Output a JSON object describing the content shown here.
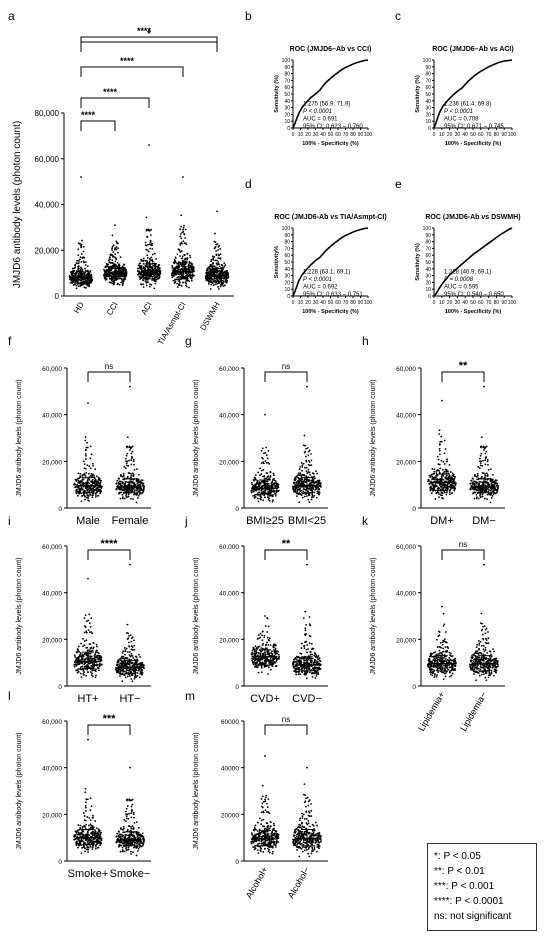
{
  "chart_data": [
    {
      "panel": "a",
      "type": "scatter",
      "ylabel": "JMJD6 antibody levels (photon count)",
      "ylim": [
        0,
        80000
      ],
      "yticks": [
        "0",
        "20,000",
        "40,000",
        "60,000",
        "80,000"
      ],
      "categories": [
        "HD",
        "CCI",
        "ACI",
        "TIA/Asmpt-CI",
        "DSWMH"
      ],
      "medians": [
        8000,
        10000,
        10500,
        10500,
        9000
      ],
      "iqr": [
        [
          5500,
          10500
        ],
        [
          7500,
          13000
        ],
        [
          7500,
          14000
        ],
        [
          7500,
          14500
        ],
        [
          6500,
          12000
        ]
      ],
      "max_outliers": [
        52000,
        31000,
        66000,
        52000,
        37000
      ],
      "significance": [
        {
          "compare": [
            "HD",
            "CCI"
          ],
          "label": "****"
        },
        {
          "compare": [
            "HD",
            "ACI"
          ],
          "label": "****"
        },
        {
          "compare": [
            "HD",
            "TIA/Asmpt-CI"
          ],
          "label": "****"
        },
        {
          "compare": [
            "HD",
            "DSWMH"
          ],
          "label": "****"
        },
        {
          "compare": [
            "HD",
            "DSWMH"
          ],
          "label": "*"
        }
      ]
    },
    {
      "panel": "b",
      "type": "line",
      "title": "ROC (JMJD6–Ab vs CCI)",
      "xlabel": "100% - Specificity (%)",
      "ylabel": "Sensitivity (%)",
      "ticks": [
        "0",
        "10",
        "20",
        "30",
        "40",
        "50",
        "60",
        "70",
        "80",
        "90",
        "100"
      ],
      "annotation": [
        "1.275 (56.9; 71.9)",
        "P < 0.0001",
        "AUC = 0.691",
        "95% CI: 0.623 – 0.760"
      ],
      "x": [
        0,
        2,
        5,
        8,
        12,
        18,
        24,
        30,
        36,
        40,
        44,
        48,
        52,
        58,
        64,
        70,
        76,
        82,
        88,
        94,
        100
      ],
      "y": [
        0,
        5,
        14,
        22,
        30,
        38,
        45,
        50,
        56,
        62,
        67,
        71,
        75,
        80,
        85,
        89,
        92,
        95,
        97,
        99,
        100
      ]
    },
    {
      "panel": "c",
      "type": "line",
      "title": "ROC (JMJD6–Ab vs ACI)",
      "xlabel": "100% - Specificity (%)",
      "ylabel": "Sensitivity (%)",
      "ticks": [
        "0",
        "10",
        "20",
        "30",
        "40",
        "50",
        "60",
        "70",
        "80",
        "90",
        "100"
      ],
      "annotation": [
        "1.236 (61.4; 69.8)",
        "P < 0.0001",
        "AUC = 0.708",
        "95% CI: 0.671 – 0.745"
      ],
      "x": [
        0,
        2,
        5,
        8,
        12,
        18,
        24,
        30,
        36,
        40,
        44,
        48,
        52,
        58,
        64,
        70,
        76,
        82,
        88,
        94,
        100
      ],
      "y": [
        0,
        6,
        16,
        25,
        33,
        41,
        48,
        54,
        59,
        64,
        69,
        73,
        77,
        82,
        86,
        90,
        93,
        96,
        98,
        99,
        100
      ]
    },
    {
      "panel": "d",
      "type": "line",
      "title": "ROC (JMJD6-Ab vs TIA/Asmpt-CI)",
      "xlabel": "100% - Specificity (%)",
      "ylabel": "Sensitivity%",
      "ticks": [
        "0",
        "10",
        "20",
        "30",
        "40",
        "50",
        "60",
        "70",
        "80",
        "90",
        "100"
      ],
      "annotation": [
        "1.228 (63.1; 69.1)",
        "P < 0.0001",
        "AUC = 0.692",
        "95% CI: 0.633 – 0.751"
      ],
      "x": [
        0,
        2,
        5,
        8,
        12,
        18,
        24,
        30,
        36,
        40,
        44,
        48,
        52,
        58,
        64,
        70,
        76,
        82,
        88,
        94,
        100
      ],
      "y": [
        0,
        5,
        14,
        23,
        31,
        39,
        46,
        52,
        57,
        62,
        67,
        71,
        75,
        80,
        85,
        89,
        92,
        95,
        97,
        99,
        100
      ]
    },
    {
      "panel": "e",
      "type": "line",
      "title": "ROC (JMJD6-Ab vs  DSWMH)",
      "xlabel": "100% - Specificity (%)",
      "ylabel": "Sensitivity (%)",
      "ticks": [
        "0",
        "10",
        "20",
        "30",
        "40",
        "50",
        "60",
        "70",
        "80",
        "90",
        "100"
      ],
      "annotation": [
        "1.228 (46.9; 69.1)",
        "P = 0.0008",
        "AUC = 0.595",
        "95% CI: 0.540 – 0.650"
      ],
      "x": [
        0,
        3,
        6,
        10,
        15,
        20,
        26,
        32,
        38,
        44,
        50,
        56,
        62,
        68,
        74,
        80,
        86,
        92,
        96,
        100
      ],
      "y": [
        0,
        4,
        10,
        17,
        24,
        31,
        37,
        43,
        49,
        55,
        61,
        66,
        71,
        76,
        81,
        86,
        91,
        95,
        98,
        100
      ]
    },
    {
      "panel": "f",
      "type": "scatter",
      "ylabel": "JMJD6 antibody levels (photon count)",
      "ylim": [
        0,
        60000
      ],
      "yticks": [
        "0",
        "20,000",
        "40,000",
        "60,000"
      ],
      "categories": [
        "Male",
        "Female"
      ],
      "medians": [
        9500,
        9000
      ],
      "iqr": [
        [
          6500,
          13000
        ],
        [
          6500,
          12500
        ]
      ],
      "max_outliers": [
        45000,
        52000
      ],
      "significance": [
        {
          "compare": [
            "Male",
            "Female"
          ],
          "label": "ns"
        }
      ]
    },
    {
      "panel": "g",
      "type": "scatter",
      "ylabel": "JMJD6 antibody levels (photon count)",
      "ylim": [
        0,
        60000
      ],
      "yticks": [
        "0",
        "20,000",
        "40,000",
        "60,000"
      ],
      "categories": [
        "BMI≥25",
        "BMI<25"
      ],
      "medians": [
        8500,
        9500
      ],
      "iqr": [
        [
          6000,
          12000
        ],
        [
          6500,
          13000
        ]
      ],
      "max_outliers": [
        40000,
        52000
      ],
      "significance": [
        {
          "compare": [
            "BMI≥25",
            "BMI<25"
          ],
          "label": "ns"
        }
      ]
    },
    {
      "panel": "h",
      "type": "scatter",
      "ylabel": "JMJD6 antibody levels (photon count)",
      "ylim": [
        0,
        60000
      ],
      "yticks": [
        "0",
        "20,000",
        "40,000",
        "60,000"
      ],
      "categories": [
        "DM+",
        "DM−"
      ],
      "medians": [
        11000,
        9000
      ],
      "iqr": [
        [
          7500,
          14500
        ],
        [
          6500,
          12500
        ]
      ],
      "max_outliers": [
        46000,
        52000
      ],
      "significance": [
        {
          "compare": [
            "DM+",
            "DM−"
          ],
          "label": "**"
        }
      ]
    },
    {
      "panel": "i",
      "type": "scatter",
      "ylabel": "JMJD6 antibody levels (photon count)",
      "ylim": [
        0,
        60000
      ],
      "yticks": [
        "0",
        "20,000",
        "40,000",
        "60,000"
      ],
      "categories": [
        "HT+",
        "HT−"
      ],
      "medians": [
        10500,
        8000
      ],
      "iqr": [
        [
          7500,
          14500
        ],
        [
          5500,
          11000
        ]
      ],
      "max_outliers": [
        46000,
        52000
      ],
      "significance": [
        {
          "compare": [
            "HT+",
            "HT−"
          ],
          "label": "****"
        }
      ]
    },
    {
      "panel": "j",
      "type": "scatter",
      "ylabel": "JMJD6 antibody levels (photon count)",
      "ylim": [
        0,
        60000
      ],
      "yticks": [
        "0",
        "20,000",
        "40,000",
        "60,000"
      ],
      "categories": [
        "CVD+",
        "CVD−"
      ],
      "medians": [
        12500,
        9000
      ],
      "iqr": [
        [
          9000,
          15500
        ],
        [
          6500,
          12500
        ]
      ],
      "max_outliers": [
        30000,
        52000
      ],
      "significance": [
        {
          "compare": [
            "CVD+",
            "CVD−"
          ],
          "label": "**"
        }
      ]
    },
    {
      "panel": "k",
      "type": "scatter",
      "ylabel": "JMJD6 antibody levels (photon count)",
      "ylim": [
        0,
        60000
      ],
      "yticks": [
        "0",
        "20,000",
        "40,000",
        "60,000"
      ],
      "categories": [
        "Lipidemia+",
        "Lipidemia−"
      ],
      "medians": [
        9500,
        9500
      ],
      "iqr": [
        [
          6500,
          13000
        ],
        [
          6500,
          13000
        ]
      ],
      "max_outliers": [
        34000,
        52000
      ],
      "significance": [
        {
          "compare": [
            "Lipidemia+",
            "Lipidemia−"
          ],
          "label": "ns"
        }
      ]
    },
    {
      "panel": "l",
      "type": "scatter",
      "ylabel": "JMJD6 antibody levels (photon count)",
      "ylim": [
        0,
        60000
      ],
      "yticks": [
        "0",
        "20,000",
        "40,000",
        "60,000"
      ],
      "categories": [
        "Smoke+",
        "Smoke−"
      ],
      "medians": [
        10000,
        9000
      ],
      "iqr": [
        [
          7000,
          13500
        ],
        [
          6500,
          12500
        ]
      ],
      "max_outliers": [
        52000,
        40000
      ],
      "significance": [
        {
          "compare": [
            "Smoke+",
            "Smoke−"
          ],
          "label": "***"
        }
      ]
    },
    {
      "panel": "m",
      "type": "scatter",
      "ylabel": "JMJD6 antibody levels (photon count)",
      "ylim": [
        0,
        60000
      ],
      "yticks": [
        "0",
        "20000",
        "40000",
        "60000"
      ],
      "categories": [
        "Alcohol+",
        "Alcohol−"
      ],
      "medians": [
        9500,
        9500
      ],
      "iqr": [
        [
          6500,
          13000
        ],
        [
          6500,
          13500
        ]
      ],
      "max_outliers": [
        45000,
        40000
      ],
      "significance": [
        {
          "compare": [
            "Alcohol+",
            "Alcohol−"
          ],
          "label": "ns"
        }
      ]
    }
  ],
  "legend": {
    "lines": [
      "*: P < 0.05",
      "**: P < 0.01",
      "***: P < 0.001",
      "****: P < 0.0001",
      "ns: not significant"
    ]
  }
}
